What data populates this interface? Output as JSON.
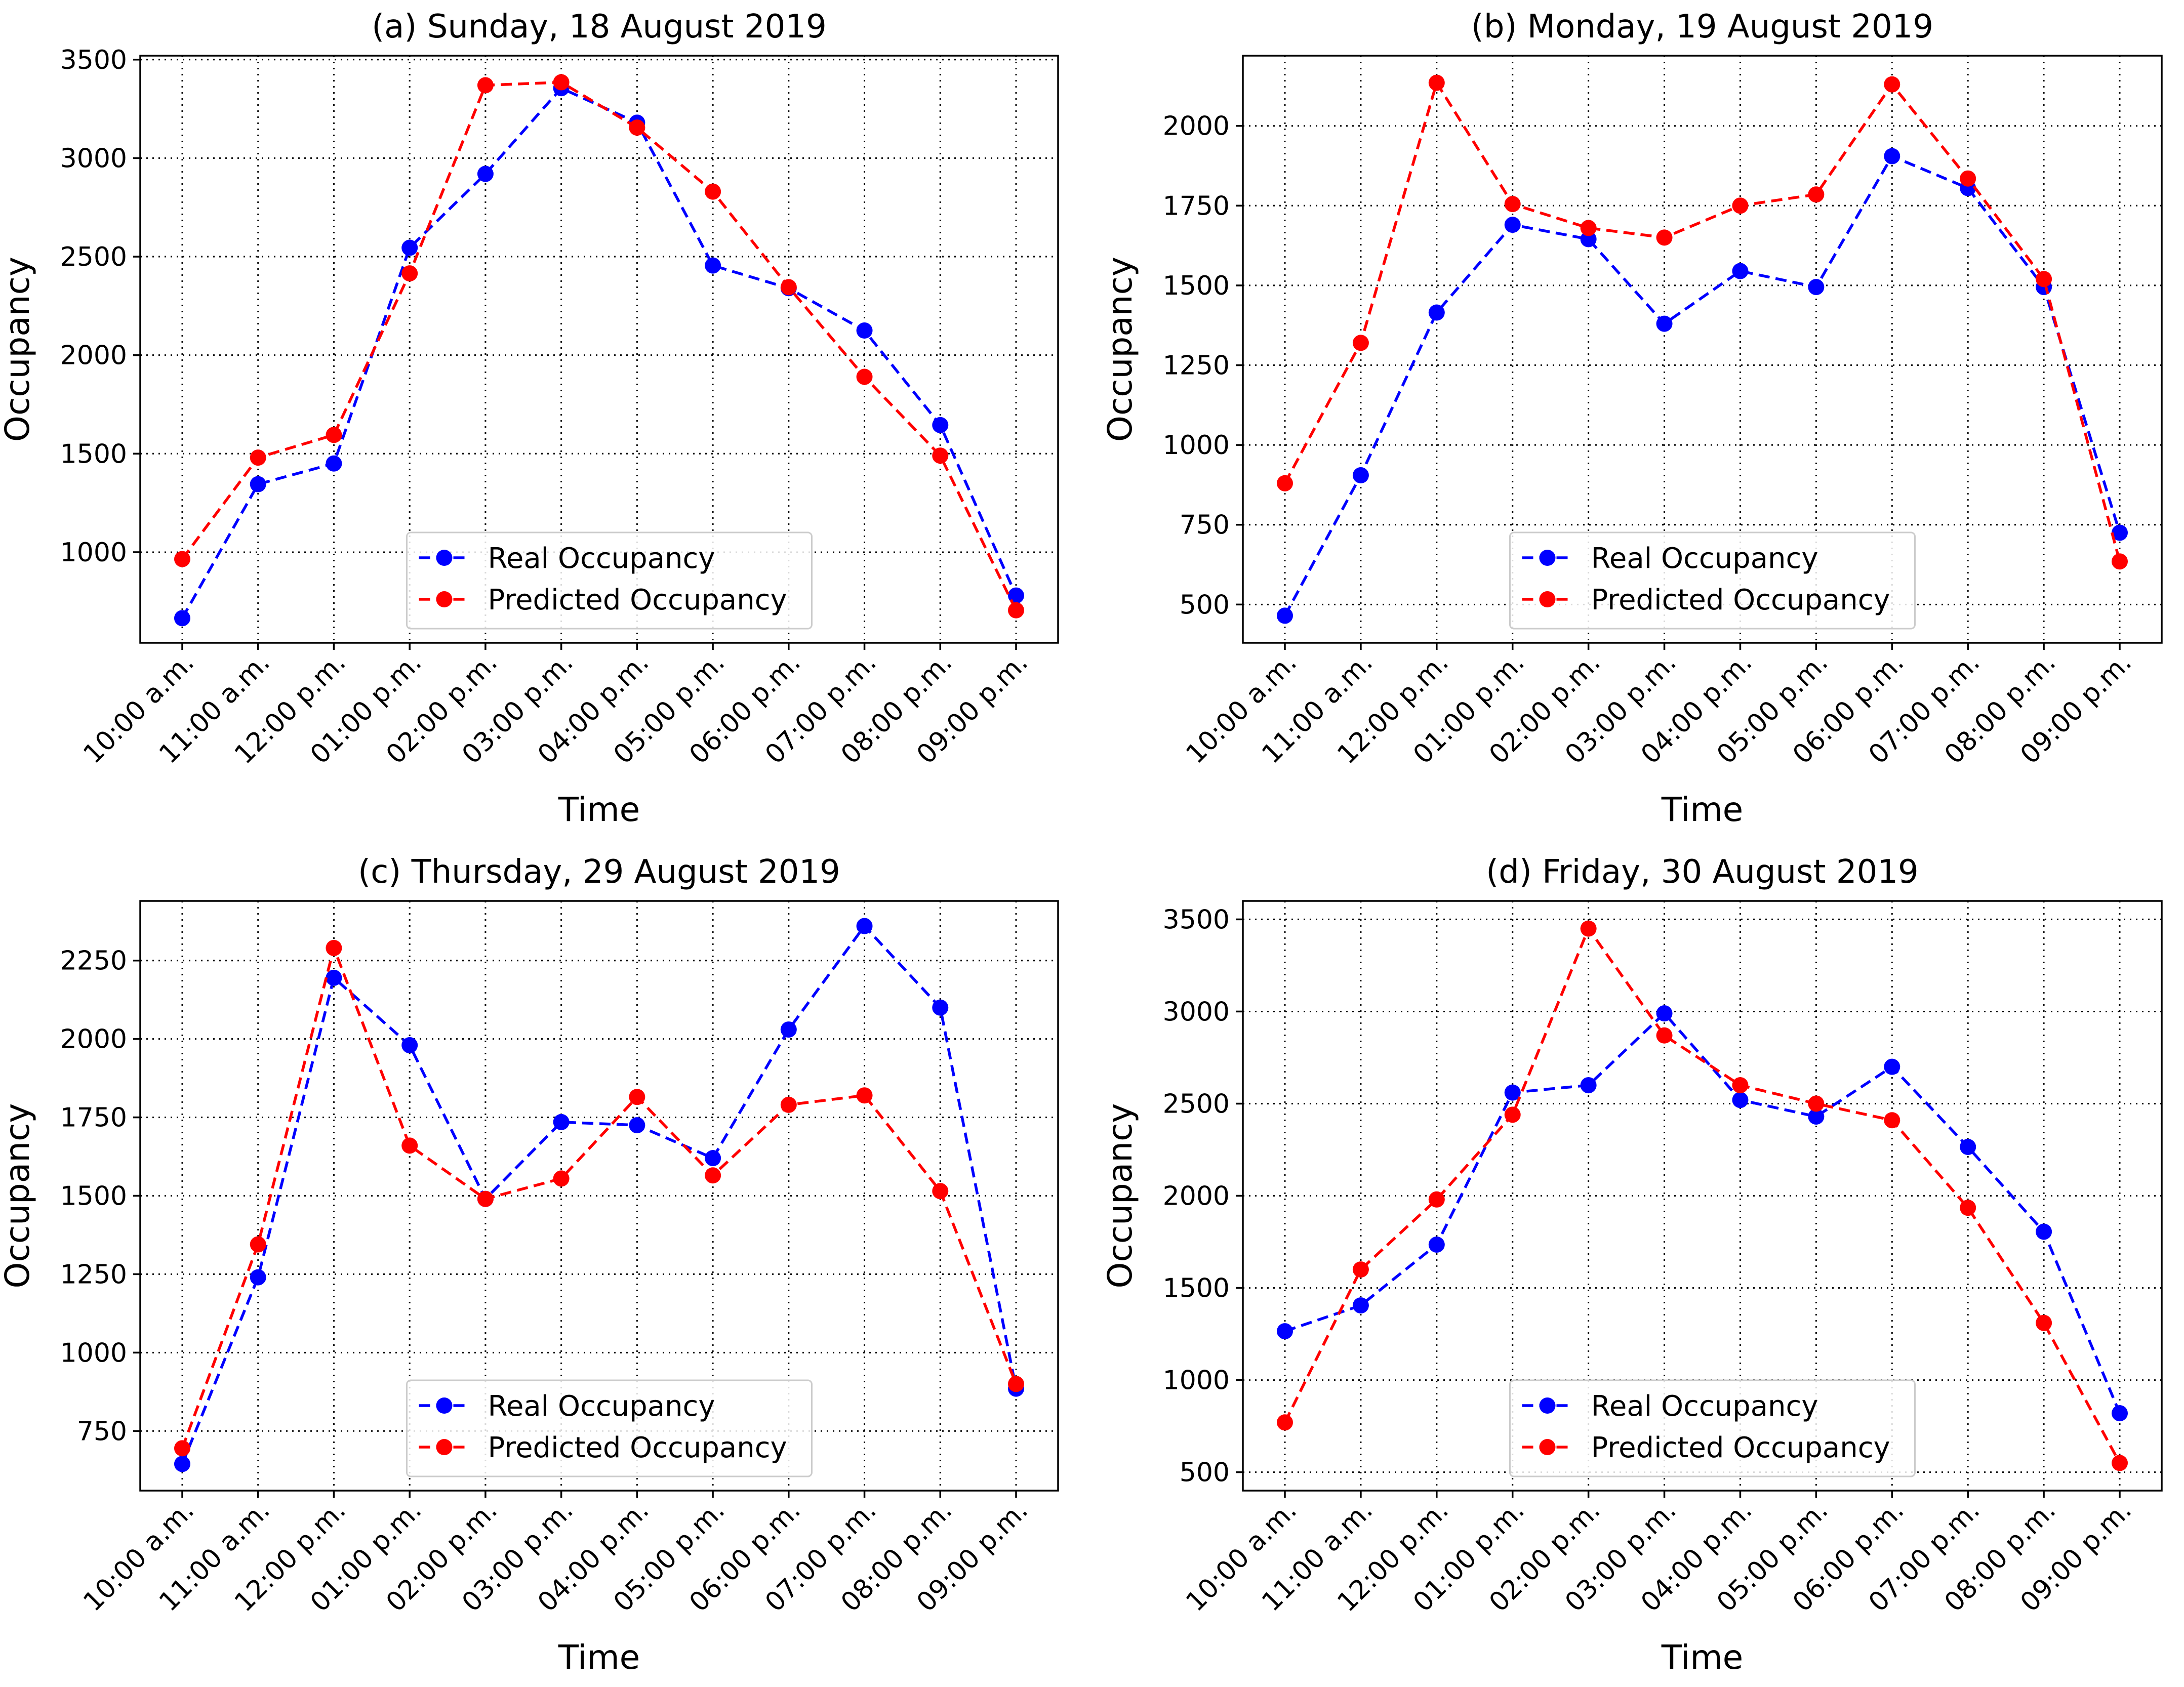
{
  "figure": {
    "series_names": [
      "Real Occupancy",
      "Predicted Occupancy"
    ],
    "series_colors": [
      "#0000ff",
      "#ff0000"
    ]
  },
  "chart_data": [
    {
      "type": "line",
      "title": "(a) Sunday, 18 August 2019",
      "xlabel": "Time",
      "ylabel": "Occupancy",
      "categories": [
        "10:00 a.m.",
        "11:00 a.m.",
        "12:00 p.m.",
        "01:00 p.m.",
        "02:00 p.m.",
        "03:00 p.m.",
        "04:00 p.m.",
        "05:00 p.m.",
        "06:00 p.m.",
        "07:00 p.m.",
        "08:00 p.m.",
        "09:00 p.m."
      ],
      "ylim": [
        540,
        3520
      ],
      "yticks": [
        1000,
        1500,
        2000,
        2500,
        3000,
        3500
      ],
      "grid": true,
      "legend": "bottom-center",
      "series": [
        {
          "name": "Real Occupancy",
          "color": "#0000ff",
          "values": [
            665,
            1345,
            1450,
            2545,
            2920,
            3355,
            3180,
            2455,
            2340,
            2125,
            1645,
            780
          ]
        },
        {
          "name": "Predicted Occupancy",
          "color": "#ff0000",
          "values": [
            965,
            1480,
            1595,
            2415,
            3370,
            3385,
            3155,
            2830,
            2345,
            1890,
            1490,
            705
          ]
        }
      ]
    },
    {
      "type": "line",
      "title": "(b) Monday, 19 August 2019",
      "xlabel": "Time",
      "ylabel": "Occupancy",
      "categories": [
        "10:00 a.m.",
        "11:00 a.m.",
        "12:00 p.m.",
        "01:00 p.m.",
        "02:00 p.m.",
        "03:00 p.m.",
        "04:00 p.m.",
        "05:00 p.m.",
        "06:00 p.m.",
        "07:00 p.m.",
        "08:00 p.m.",
        "09:00 p.m."
      ],
      "ylim": [
        380,
        2220
      ],
      "yticks": [
        500,
        750,
        1000,
        1250,
        1500,
        1750,
        2000
      ],
      "grid": true,
      "legend": "bottom-center",
      "series": [
        {
          "name": "Real Occupancy",
          "color": "#0000ff",
          "values": [
            465,
            905,
            1415,
            1690,
            1645,
            1380,
            1545,
            1495,
            1905,
            1805,
            1495,
            725
          ]
        },
        {
          "name": "Predicted Occupancy",
          "color": "#ff0000",
          "values": [
            880,
            1320,
            2135,
            1755,
            1680,
            1650,
            1750,
            1785,
            2130,
            1835,
            1520,
            635
          ]
        }
      ]
    },
    {
      "type": "line",
      "title": "(c) Thursday, 29 August 2019",
      "xlabel": "Time",
      "ylabel": "Occupancy",
      "categories": [
        "10:00 a.m.",
        "11:00 a.m.",
        "12:00 p.m.",
        "01:00 p.m.",
        "02:00 p.m.",
        "03:00 p.m.",
        "04:00 p.m.",
        "05:00 p.m.",
        "06:00 p.m.",
        "07:00 p.m.",
        "08:00 p.m.",
        "09:00 p.m."
      ],
      "ylim": [
        560,
        2440
      ],
      "yticks": [
        750,
        1000,
        1250,
        1500,
        1750,
        2000,
        2250
      ],
      "grid": true,
      "legend": "bottom-center",
      "series": [
        {
          "name": "Real Occupancy",
          "color": "#0000ff",
          "values": [
            645,
            1240,
            2195,
            1980,
            1490,
            1735,
            1725,
            1620,
            2030,
            2360,
            2100,
            885
          ]
        },
        {
          "name": "Predicted Occupancy",
          "color": "#ff0000",
          "values": [
            695,
            1345,
            2290,
            1660,
            1490,
            1555,
            1815,
            1565,
            1790,
            1820,
            1515,
            900
          ]
        }
      ]
    },
    {
      "type": "line",
      "title": "(d) Friday, 30 August 2019",
      "xlabel": "Time",
      "ylabel": "Occupancy",
      "categories": [
        "10:00 a.m.",
        "11:00 a.m.",
        "12:00 p.m.",
        "01:00 p.m.",
        "02:00 p.m.",
        "03:00 p.m.",
        "04:00 p.m.",
        "05:00 p.m.",
        "06:00 p.m.",
        "07:00 p.m.",
        "08:00 p.m.",
        "09:00 p.m."
      ],
      "ylim": [
        400,
        3600
      ],
      "yticks": [
        500,
        1000,
        1500,
        2000,
        2500,
        3000,
        3500
      ],
      "grid": true,
      "legend": "bottom-center",
      "series": [
        {
          "name": "Real Occupancy",
          "color": "#0000ff",
          "values": [
            1265,
            1405,
            1735,
            2560,
            2600,
            2990,
            2520,
            2430,
            2700,
            2265,
            1805,
            820
          ]
        },
        {
          "name": "Predicted Occupancy",
          "color": "#ff0000",
          "values": [
            770,
            1600,
            1980,
            2440,
            3450,
            2870,
            2600,
            2500,
            2410,
            1935,
            1310,
            550
          ]
        }
      ]
    }
  ]
}
